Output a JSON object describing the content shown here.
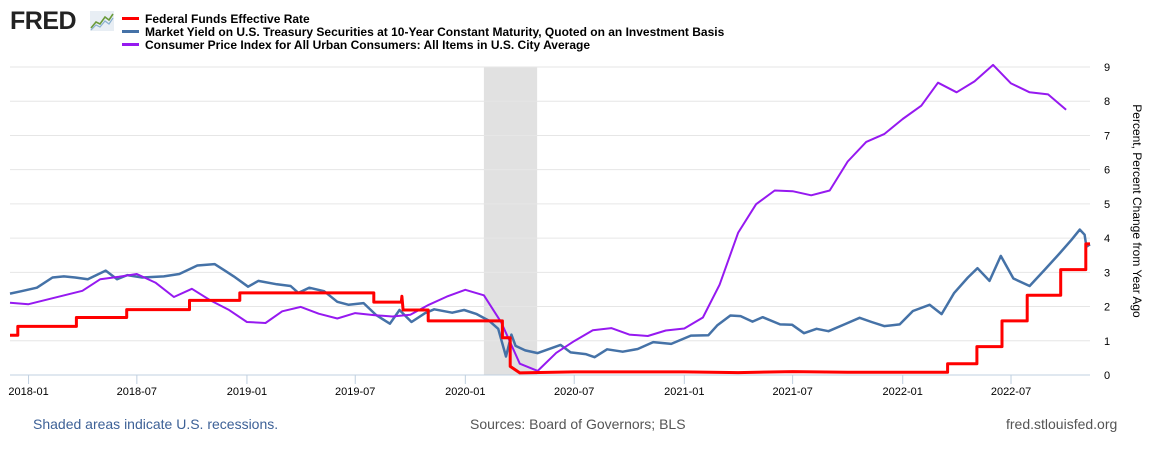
{
  "header": {
    "logo_text": "FRED",
    "logo_icon": "line-chart-icon"
  },
  "legend": [
    {
      "label": "Federal Funds Effective Rate",
      "color": "#ff0000"
    },
    {
      "label": "Market Yield on U.S. Treasury Securities at 10-Year Constant Maturity, Quoted on an Investment Basis",
      "color": "#4572a7"
    },
    {
      "label": "Consumer Price Index for All Urban Consumers: All Items in U.S. City Average",
      "color": "#9619f0"
    }
  ],
  "footer": {
    "recession_note": "Shaded areas indicate U.S. recessions.",
    "sources": "Sources: Board of Governors; BLS",
    "site": "fred.stlouisfed.org"
  },
  "chart_data": {
    "type": "line",
    "title": "",
    "xlabel": "",
    "ylabel": "Percent, Percent Change from Year Ago",
    "y_axis_side": "right",
    "ylim": [
      0,
      9
    ],
    "yticks": [
      0,
      1,
      2,
      3,
      4,
      5,
      6,
      7,
      8,
      9
    ],
    "xlim": [
      "2017-12-01",
      "2022-11-10"
    ],
    "xticks": [
      "2018-01",
      "2018-07",
      "2019-01",
      "2019-07",
      "2020-01",
      "2020-07",
      "2021-01",
      "2021-07",
      "2022-01",
      "2022-07"
    ],
    "grid": true,
    "legend_position": "top-left",
    "recessions": [
      {
        "start": "2020-02-01",
        "end": "2020-04-30"
      }
    ],
    "series": [
      {
        "name": "Federal Funds Effective Rate",
        "color": "#ff0000",
        "style": "step",
        "points": [
          [
            "2017-12-01",
            1.16
          ],
          [
            "2017-12-14",
            1.16
          ],
          [
            "2017-12-14",
            1.42
          ],
          [
            "2018-03-22",
            1.42
          ],
          [
            "2018-03-22",
            1.68
          ],
          [
            "2018-06-14",
            1.68
          ],
          [
            "2018-06-14",
            1.91
          ],
          [
            "2018-09-27",
            1.91
          ],
          [
            "2018-09-27",
            2.18
          ],
          [
            "2018-12-20",
            2.18
          ],
          [
            "2018-12-20",
            2.4
          ],
          [
            "2019-08-01",
            2.4
          ],
          [
            "2019-08-01",
            2.13
          ],
          [
            "2019-09-16",
            2.13
          ],
          [
            "2019-09-17",
            2.3
          ],
          [
            "2019-09-19",
            1.9
          ],
          [
            "2019-10-31",
            1.9
          ],
          [
            "2019-10-31",
            1.58
          ],
          [
            "2020-03-03",
            1.58
          ],
          [
            "2020-03-03",
            1.09
          ],
          [
            "2020-03-16",
            1.09
          ],
          [
            "2020-03-16",
            0.25
          ],
          [
            "2020-04-01",
            0.06
          ],
          [
            "2020-07-01",
            0.09
          ],
          [
            "2021-01-01",
            0.09
          ],
          [
            "2021-04-01",
            0.07
          ],
          [
            "2021-07-01",
            0.1
          ],
          [
            "2021-10-01",
            0.08
          ],
          [
            "2022-03-17",
            0.08
          ],
          [
            "2022-03-17",
            0.33
          ],
          [
            "2022-05-05",
            0.33
          ],
          [
            "2022-05-05",
            0.83
          ],
          [
            "2022-06-16",
            0.83
          ],
          [
            "2022-06-16",
            1.58
          ],
          [
            "2022-07-28",
            1.58
          ],
          [
            "2022-07-28",
            2.33
          ],
          [
            "2022-09-22",
            2.33
          ],
          [
            "2022-09-22",
            3.08
          ],
          [
            "2022-11-03",
            3.08
          ],
          [
            "2022-11-03",
            3.83
          ],
          [
            "2022-11-10",
            3.83
          ]
        ]
      },
      {
        "name": "Market Yield on U.S. Treasury Securities at 10-Year Constant Maturity, Quoted on an Investment Basis",
        "color": "#4572a7",
        "style": "line",
        "points": [
          [
            "2017-12-01",
            2.38
          ],
          [
            "2017-12-20",
            2.45
          ],
          [
            "2018-01-15",
            2.55
          ],
          [
            "2018-02-10",
            2.85
          ],
          [
            "2018-03-01",
            2.88
          ],
          [
            "2018-03-20",
            2.85
          ],
          [
            "2018-04-10",
            2.8
          ],
          [
            "2018-05-10",
            3.05
          ],
          [
            "2018-05-29",
            2.8
          ],
          [
            "2018-06-15",
            2.92
          ],
          [
            "2018-07-10",
            2.85
          ],
          [
            "2018-08-15",
            2.88
          ],
          [
            "2018-09-10",
            2.95
          ],
          [
            "2018-10-10",
            3.2
          ],
          [
            "2018-11-08",
            3.24
          ],
          [
            "2018-11-25",
            3.05
          ],
          [
            "2018-12-10",
            2.88
          ],
          [
            "2019-01-03",
            2.58
          ],
          [
            "2019-01-20",
            2.75
          ],
          [
            "2019-02-20",
            2.65
          ],
          [
            "2019-03-15",
            2.6
          ],
          [
            "2019-03-28",
            2.4
          ],
          [
            "2019-04-15",
            2.55
          ],
          [
            "2019-05-10",
            2.45
          ],
          [
            "2019-06-01",
            2.14
          ],
          [
            "2019-06-20",
            2.05
          ],
          [
            "2019-07-15",
            2.1
          ],
          [
            "2019-08-05",
            1.75
          ],
          [
            "2019-08-28",
            1.5
          ],
          [
            "2019-09-13",
            1.9
          ],
          [
            "2019-10-03",
            1.55
          ],
          [
            "2019-10-25",
            1.8
          ],
          [
            "2019-11-10",
            1.92
          ],
          [
            "2019-12-10",
            1.82
          ],
          [
            "2019-12-30",
            1.9
          ],
          [
            "2020-01-20",
            1.78
          ],
          [
            "2020-02-10",
            1.58
          ],
          [
            "2020-02-25",
            1.35
          ],
          [
            "2020-03-09",
            0.54
          ],
          [
            "2020-03-18",
            1.18
          ],
          [
            "2020-03-25",
            0.85
          ],
          [
            "2020-04-10",
            0.72
          ],
          [
            "2020-05-01",
            0.64
          ],
          [
            "2020-06-08",
            0.88
          ],
          [
            "2020-06-25",
            0.66
          ],
          [
            "2020-07-20",
            0.61
          ],
          [
            "2020-08-04",
            0.52
          ],
          [
            "2020-08-25",
            0.75
          ],
          [
            "2020-09-20",
            0.68
          ],
          [
            "2020-10-15",
            0.76
          ],
          [
            "2020-11-10",
            0.96
          ],
          [
            "2020-12-10",
            0.91
          ],
          [
            "2021-01-12",
            1.15
          ],
          [
            "2021-02-10",
            1.16
          ],
          [
            "2021-02-25",
            1.45
          ],
          [
            "2021-03-19",
            1.74
          ],
          [
            "2021-04-05",
            1.72
          ],
          [
            "2021-04-25",
            1.56
          ],
          [
            "2021-05-12",
            1.69
          ],
          [
            "2021-06-10",
            1.48
          ],
          [
            "2021-06-30",
            1.47
          ],
          [
            "2021-07-20",
            1.22
          ],
          [
            "2021-08-10",
            1.35
          ],
          [
            "2021-08-30",
            1.28
          ],
          [
            "2021-09-27",
            1.49
          ],
          [
            "2021-10-21",
            1.67
          ],
          [
            "2021-11-10",
            1.55
          ],
          [
            "2021-12-01",
            1.43
          ],
          [
            "2021-12-27",
            1.48
          ],
          [
            "2022-01-18",
            1.87
          ],
          [
            "2022-02-15",
            2.05
          ],
          [
            "2022-03-07",
            1.78
          ],
          [
            "2022-03-28",
            2.4
          ],
          [
            "2022-04-20",
            2.85
          ],
          [
            "2022-05-06",
            3.12
          ],
          [
            "2022-05-26",
            2.75
          ],
          [
            "2022-06-14",
            3.48
          ],
          [
            "2022-07-05",
            2.82
          ],
          [
            "2022-08-01",
            2.6
          ],
          [
            "2022-08-25",
            3.05
          ],
          [
            "2022-09-20",
            3.55
          ],
          [
            "2022-10-10",
            3.95
          ],
          [
            "2022-10-24",
            4.25
          ],
          [
            "2022-11-01",
            4.1
          ],
          [
            "2022-11-04",
            3.75
          ],
          [
            "2022-11-10",
            3.82
          ]
        ]
      },
      {
        "name": "Consumer Price Index for All Urban Consumers: All Items in U.S. City Average",
        "color": "#9619f0",
        "style": "line",
        "points": [
          [
            "2017-12-01",
            2.11
          ],
          [
            "2018-01-01",
            2.07
          ],
          [
            "2018-04-01",
            2.46
          ],
          [
            "2018-05-01",
            2.8
          ],
          [
            "2018-06-01",
            2.87
          ],
          [
            "2018-07-01",
            2.95
          ],
          [
            "2018-08-01",
            2.7
          ],
          [
            "2018-09-01",
            2.28
          ],
          [
            "2018-10-01",
            2.52
          ],
          [
            "2018-11-01",
            2.18
          ],
          [
            "2018-12-01",
            1.91
          ],
          [
            "2019-01-01",
            1.55
          ],
          [
            "2019-02-01",
            1.52
          ],
          [
            "2019-03-01",
            1.86
          ],
          [
            "2019-04-01",
            1.99
          ],
          [
            "2019-05-01",
            1.79
          ],
          [
            "2019-06-01",
            1.65
          ],
          [
            "2019-07-01",
            1.81
          ],
          [
            "2019-08-01",
            1.75
          ],
          [
            "2019-09-01",
            1.71
          ],
          [
            "2019-10-01",
            1.76
          ],
          [
            "2019-11-01",
            2.05
          ],
          [
            "2019-12-01",
            2.29
          ],
          [
            "2020-01-01",
            2.49
          ],
          [
            "2020-02-01",
            2.33
          ],
          [
            "2020-03-01",
            1.54
          ],
          [
            "2020-04-01",
            0.33
          ],
          [
            "2020-05-01",
            0.12
          ],
          [
            "2020-06-01",
            0.65
          ],
          [
            "2020-07-01",
            0.99
          ],
          [
            "2020-08-01",
            1.31
          ],
          [
            "2020-09-01",
            1.37
          ],
          [
            "2020-10-01",
            1.18
          ],
          [
            "2020-11-01",
            1.14
          ],
          [
            "2020-12-01",
            1.3
          ],
          [
            "2021-01-01",
            1.36
          ],
          [
            "2021-02-01",
            1.68
          ],
          [
            "2021-03-01",
            2.64
          ],
          [
            "2021-04-01",
            4.16
          ],
          [
            "2021-05-01",
            4.99
          ],
          [
            "2021-06-01",
            5.39
          ],
          [
            "2021-07-01",
            5.37
          ],
          [
            "2021-08-01",
            5.25
          ],
          [
            "2021-09-01",
            5.39
          ],
          [
            "2021-10-01",
            6.24
          ],
          [
            "2021-11-01",
            6.81
          ],
          [
            "2021-12-01",
            7.04
          ],
          [
            "2022-01-01",
            7.48
          ],
          [
            "2022-02-01",
            7.87
          ],
          [
            "2022-03-01",
            8.54
          ],
          [
            "2022-04-01",
            8.26
          ],
          [
            "2022-05-01",
            8.58
          ],
          [
            "2022-06-01",
            9.06
          ],
          [
            "2022-07-01",
            8.52
          ],
          [
            "2022-08-01",
            8.26
          ],
          [
            "2022-09-01",
            8.2
          ],
          [
            "2022-10-01",
            7.75
          ]
        ]
      }
    ]
  }
}
